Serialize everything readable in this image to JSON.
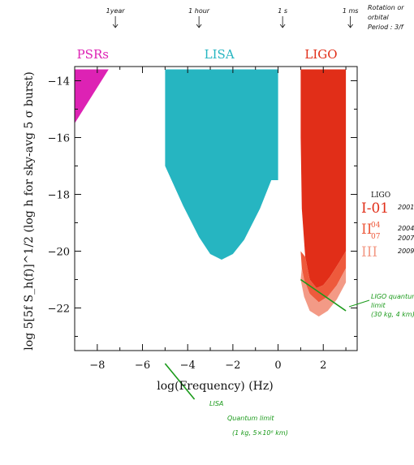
{
  "chart_data": {
    "type": "area",
    "xlabel": "log(Frequency) (Hz)",
    "ylabel": "log 5[5f S_h(f)]^1/2 (log h for sky-avg 5 σ burst)",
    "xlim": [
      -9,
      3.5
    ],
    "ylim": [
      -23.5,
      -13.5
    ],
    "xticks": [
      -8,
      -6,
      -4,
      -2,
      0,
      2
    ],
    "yticks": [
      -14,
      -16,
      -18,
      -20,
      -22
    ],
    "grid": false,
    "series": [
      {
        "name": "PSRs",
        "color": "#dd22b4",
        "points": [
          [
            -9,
            -15.5
          ],
          [
            -9,
            -13.6
          ],
          [
            -7.5,
            -13.6
          ]
        ]
      },
      {
        "name": "LISA",
        "color": "#26b5c1",
        "points": [
          [
            -5,
            -13.6
          ],
          [
            0,
            -13.6
          ],
          [
            0,
            -17.5
          ],
          [
            -0.3,
            -17.5
          ],
          [
            -0.8,
            -18.5
          ],
          [
            -1.5,
            -19.6
          ],
          [
            -2.0,
            -20.1
          ],
          [
            -2.5,
            -20.3
          ],
          [
            -3.0,
            -20.1
          ],
          [
            -3.5,
            -19.5
          ],
          [
            -4.2,
            -18.4
          ],
          [
            -5.0,
            -17.0
          ]
        ]
      },
      {
        "name": "LIGO I-01",
        "color": "#e12e18",
        "points": [
          [
            1.0,
            -13.6
          ],
          [
            3.0,
            -13.6
          ],
          [
            3.0,
            -20.0
          ],
          [
            2.7,
            -20.4
          ],
          [
            2.3,
            -20.9
          ],
          [
            2.0,
            -21.2
          ],
          [
            1.7,
            -21.3
          ],
          [
            1.4,
            -21.0
          ],
          [
            1.2,
            -20.2
          ],
          [
            1.05,
            -18.5
          ],
          [
            1.0,
            -16.0
          ]
        ]
      },
      {
        "name": "LIGO II 04/07",
        "color": "#ee5a3c",
        "points": [
          [
            3.0,
            -20.0
          ],
          [
            3.0,
            -20.6
          ],
          [
            2.6,
            -21.2
          ],
          [
            2.2,
            -21.6
          ],
          [
            1.8,
            -21.8
          ],
          [
            1.4,
            -21.5
          ],
          [
            1.15,
            -21.0
          ],
          [
            1.05,
            -20.6
          ],
          [
            1.0,
            -20.0
          ],
          [
            1.2,
            -20.2
          ],
          [
            1.4,
            -21.0
          ],
          [
            1.7,
            -21.3
          ],
          [
            2.0,
            -21.2
          ],
          [
            2.3,
            -20.9
          ],
          [
            2.7,
            -20.4
          ]
        ]
      },
      {
        "name": "LIGO III",
        "color": "#f39a86",
        "points": [
          [
            3.0,
            -20.6
          ],
          [
            3.0,
            -21.1
          ],
          [
            2.6,
            -21.7
          ],
          [
            2.2,
            -22.1
          ],
          [
            1.8,
            -22.3
          ],
          [
            1.4,
            -22.1
          ],
          [
            1.15,
            -21.6
          ],
          [
            1.0,
            -21.0
          ],
          [
            1.05,
            -20.6
          ],
          [
            1.15,
            -21.0
          ],
          [
            1.4,
            -21.5
          ],
          [
            1.8,
            -21.8
          ],
          [
            2.2,
            -21.6
          ],
          [
            2.6,
            -21.2
          ]
        ]
      }
    ],
    "band_labels": [
      {
        "text": "PSRs",
        "x": -8.2,
        "color": "#dd22b4"
      },
      {
        "text": "LISA",
        "x": -2.6,
        "color": "#26b5c1"
      },
      {
        "text": "LIGO",
        "x": 1.9,
        "color": "#e12e18"
      }
    ],
    "top_annotations": [
      {
        "text": "1year",
        "x": -7.2
      },
      {
        "text": "1 hour",
        "x": -3.5
      },
      {
        "text": "1 s",
        "x": 0.2
      },
      {
        "text": "1 ms",
        "x": 3.2
      }
    ],
    "rotation_note": [
      "Rotation or",
      "orbital",
      "Period : 3/f"
    ],
    "ligo_legend": {
      "title": "LIGO",
      "items": [
        {
          "label": "I-01",
          "year": "2001",
          "color": "#e12e18"
        },
        {
          "label": "II",
          "sup": "04",
          "sub": "07",
          "year": "2004",
          "year2": "2007",
          "color": "#ee5a3c"
        },
        {
          "label": "III",
          "year": "2009",
          "color": "#f39a86"
        }
      ]
    },
    "quantum_limits": [
      {
        "name": "LIGO quantum limit",
        "lines": [
          "LIGO quantum",
          "limit",
          "(30 kg, 4 km)"
        ],
        "color": "#1a9a1a",
        "from": [
          1.0,
          -21.0
        ],
        "to": [
          3.0,
          -22.1
        ]
      },
      {
        "name": "LISA Quantum limit",
        "lines": [
          "LISA",
          "Quantum limit",
          "(1 kg, 5×10⁶ km)"
        ],
        "color": "#1a9a1a",
        "from": [
          -5.0,
          -24.0
        ],
        "to": [
          -4.0,
          -24.8
        ]
      }
    ]
  }
}
